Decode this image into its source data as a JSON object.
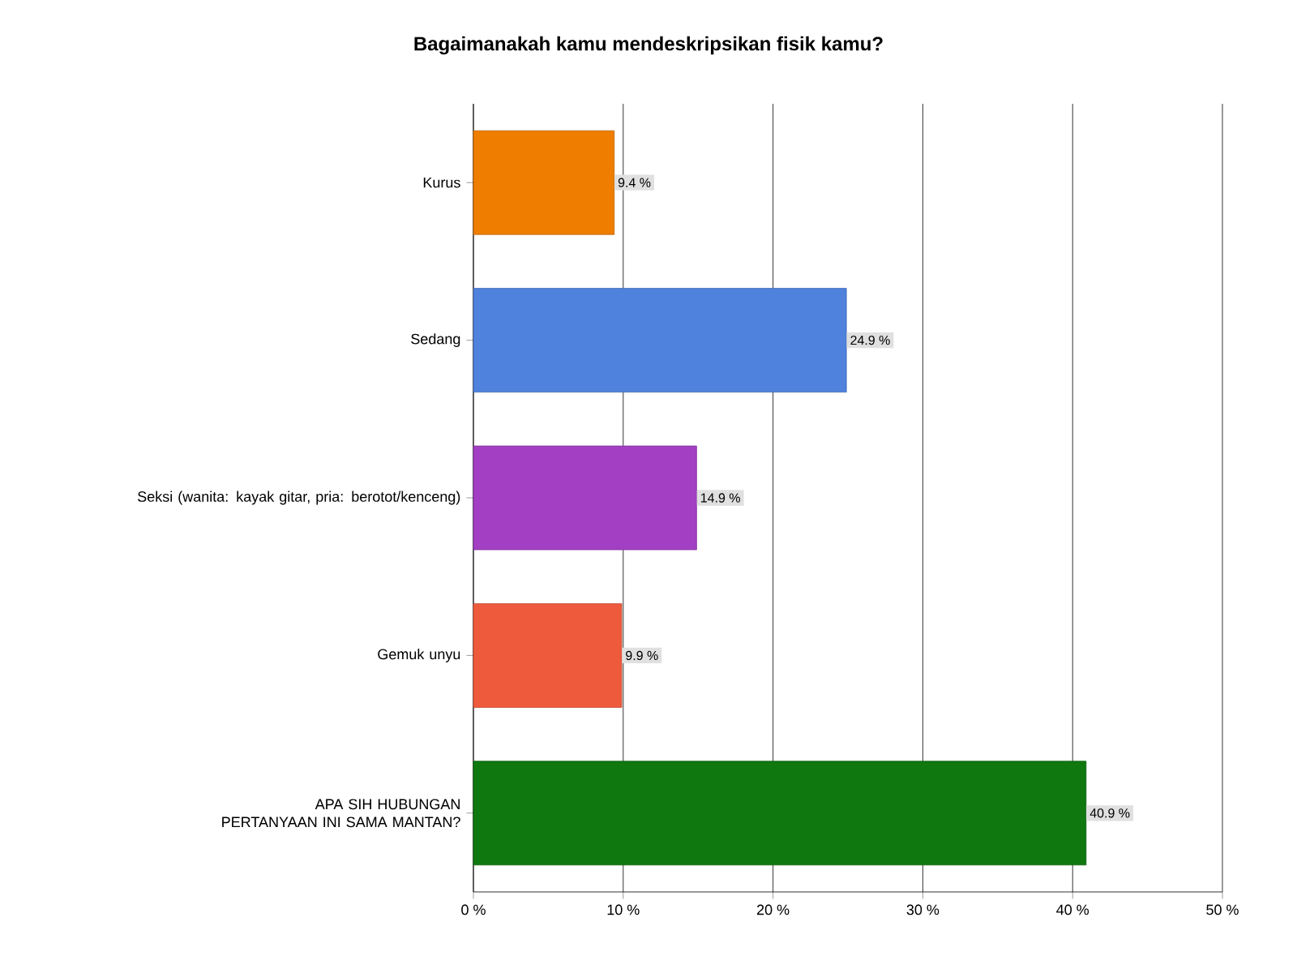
{
  "chart_data": {
    "type": "bar",
    "orientation": "horizontal",
    "title": "Bagaimanakah kamu mendeskripsikan fisik kamu?",
    "categories": [
      "Kurus",
      "Sedang",
      "Seksi (wanita: kayak gitar, pria: berotot/kenceng)",
      "Gemuk unyu",
      "APA SIH HUBUNGAN PERTANYAAN INI SAMA MANTAN?"
    ],
    "values": [
      9.4,
      24.9,
      14.9,
      9.9,
      40.9
    ],
    "value_labels": [
      "9.4 %",
      "24.9 %",
      "14.9 %",
      "9.9 %",
      "40.9 %"
    ],
    "colors": [
      "#ee7d00",
      "#4f82dc",
      "#a23fc2",
      "#ee5a3c",
      "#0f780f"
    ],
    "xlim": [
      0,
      50
    ],
    "xticks": [
      {
        "value": 0,
        "label": "0 %"
      },
      {
        "value": 10,
        "label": "10 %"
      },
      {
        "value": 20,
        "label": "20 %"
      },
      {
        "value": 30,
        "label": "30 %"
      },
      {
        "value": 40,
        "label": "40 %"
      },
      {
        "value": 50,
        "label": "50 %"
      }
    ],
    "grid": "x"
  }
}
